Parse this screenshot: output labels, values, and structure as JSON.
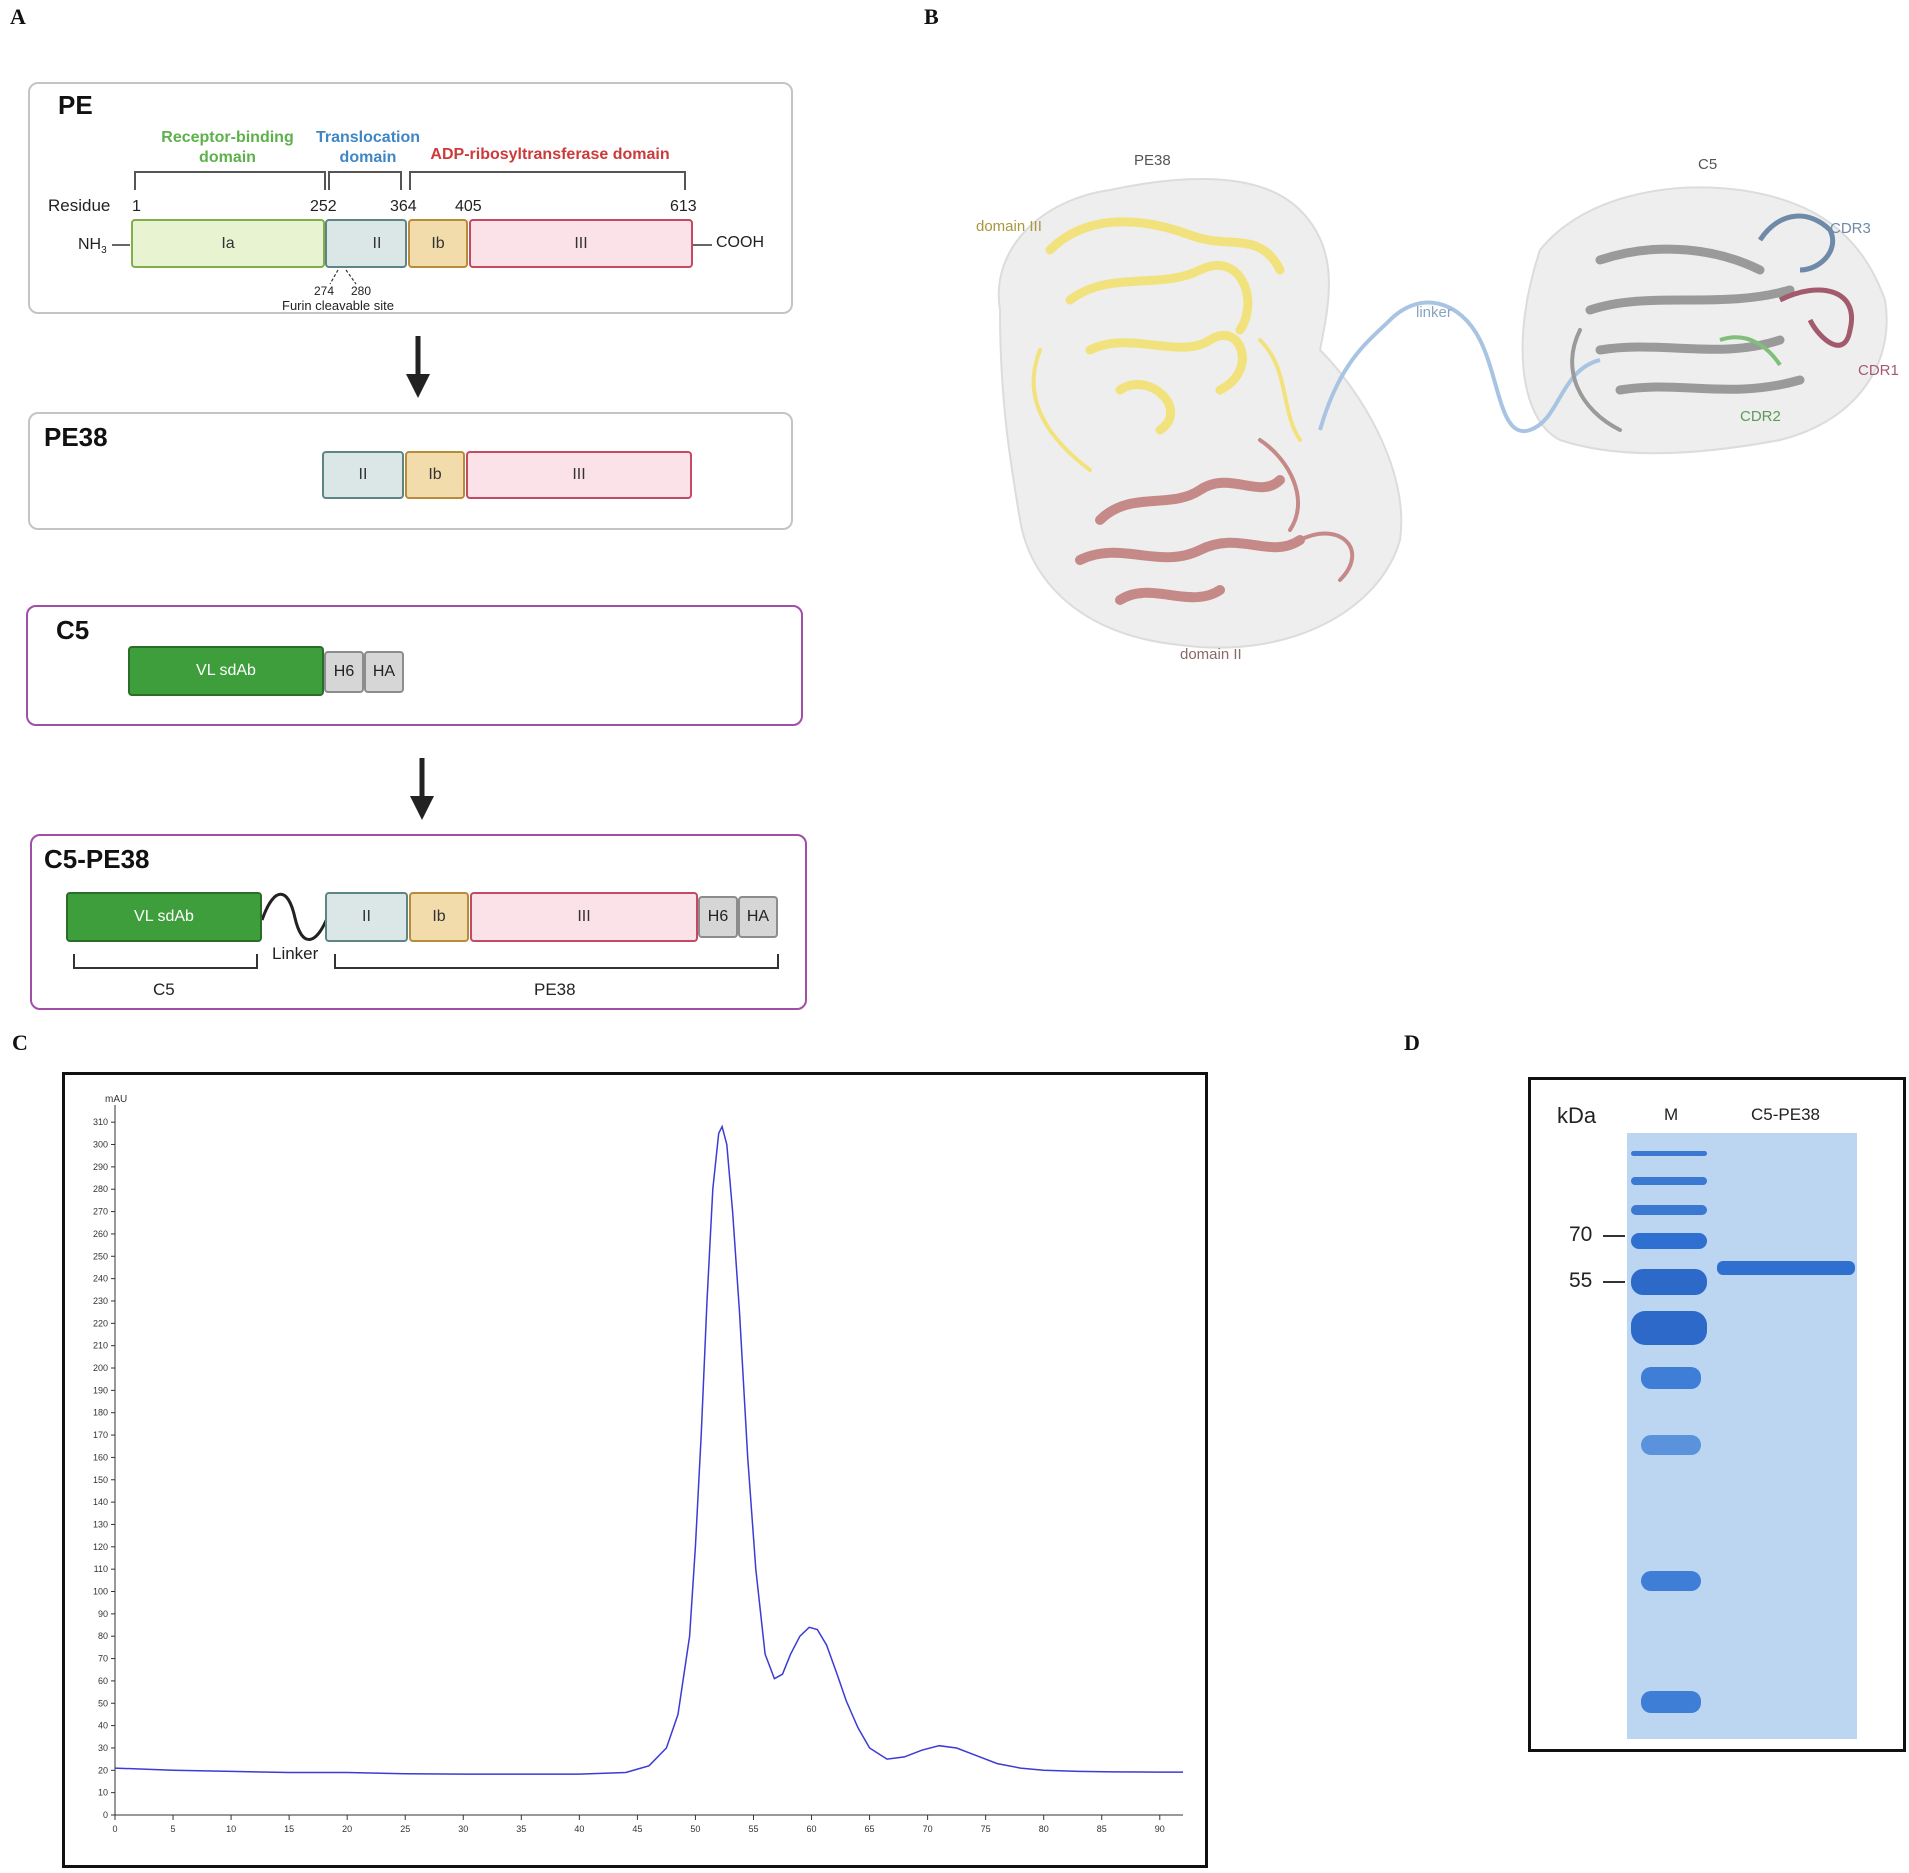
{
  "panels": {
    "a": "A",
    "b": "B",
    "c": "C",
    "d": "D"
  },
  "panel_a": {
    "pe": {
      "title": "PE",
      "domains": {
        "receptor_binding": [
          "Receptor-binding",
          "domain"
        ],
        "translocation": [
          "Translocation",
          "domain"
        ],
        "adp": "ADP-ribosyltransferase domain"
      },
      "residue_label": "Residue",
      "residues": [
        "1",
        "252",
        "364",
        "405",
        "613"
      ],
      "nh3": "NH",
      "nh3_sub": "3",
      "cooh": "COOH",
      "segments": [
        "Ia",
        "II",
        "Ib",
        "III"
      ],
      "furin_numbers": [
        "274",
        "280"
      ],
      "furin_label": "Furin cleavable site"
    },
    "pe38": {
      "title": "PE38",
      "segments": [
        "II",
        "Ib",
        "III"
      ]
    },
    "c5": {
      "title": "C5",
      "segments": [
        "VL sdAb",
        "H6",
        "HA"
      ]
    },
    "c5pe38": {
      "title": "C5-PE38",
      "segments": [
        "VL sdAb",
        "II",
        "Ib",
        "III",
        "H6",
        "HA"
      ],
      "linker": "Linker",
      "bracket_c5": "C5",
      "bracket_pe38": "PE38"
    },
    "colors": {
      "receptor": "#5db14b",
      "translocation": "#3f86c6",
      "adp": "#cc3a3a"
    }
  },
  "panel_b": {
    "labels": {
      "pe38": "PE38",
      "c5": "C5",
      "domain_iii": "domain III",
      "domain_ii": "domain II",
      "linker": "linker",
      "cdr1": "CDR1",
      "cdr2": "CDR2",
      "cdr3": "CDR3"
    },
    "colors": {
      "domain_iii": "#f2e27e",
      "domain_ii": "#c58a88",
      "linker": "#a9c4e2",
      "c5": "#9a9a9a",
      "cdr1": "#a35a6c",
      "cdr2": "#7fbf7a",
      "cdr3": "#6f8aa8"
    }
  },
  "chart_data": {
    "type": "line",
    "ylabel": "mAU",
    "xlim": [
      0,
      92
    ],
    "ylim": [
      0,
      315
    ],
    "xticks": [
      0,
      5,
      10,
      15,
      20,
      25,
      30,
      35,
      40,
      45,
      50,
      55,
      60,
      65,
      70,
      75,
      80,
      85,
      90
    ],
    "yticks": [
      0,
      10,
      20,
      30,
      40,
      50,
      60,
      70,
      80,
      90,
      100,
      110,
      120,
      130,
      140,
      150,
      160,
      170,
      180,
      190,
      200,
      210,
      220,
      230,
      240,
      250,
      260,
      270,
      280,
      290,
      300,
      310
    ],
    "series": [
      {
        "color": "#3b3bd6",
        "x": [
          0,
          5,
          10,
          15,
          20,
          25,
          30,
          35,
          40,
          44,
          46,
          47.5,
          48.5,
          49.5,
          50,
          50.5,
          51,
          51.5,
          52,
          52.3,
          52.7,
          53.2,
          53.8,
          54.5,
          55.2,
          56,
          56.8,
          57.5,
          58.2,
          59,
          59.8,
          60.5,
          61.3,
          62.2,
          63,
          64,
          65,
          66.5,
          68,
          69.5,
          71,
          72.5,
          74,
          76,
          78,
          80,
          83,
          86,
          90,
          92
        ],
        "y": [
          21,
          20,
          19.5,
          19,
          19,
          18.5,
          18.3,
          18.3,
          18.3,
          19,
          22,
          30,
          45,
          80,
          120,
          170,
          230,
          280,
          305,
          308,
          300,
          270,
          225,
          160,
          110,
          72,
          61,
          63,
          72,
          80,
          84,
          83,
          76,
          63,
          51,
          39,
          30,
          25,
          26,
          29,
          31,
          30,
          27,
          23,
          21,
          20,
          19.5,
          19.3,
          19.2,
          19.2
        ]
      }
    ]
  },
  "gel": {
    "kda_label": "kDa",
    "lane_m": "M",
    "lane_sample": "C5-PE38",
    "markers": [
      "70",
      "55"
    ],
    "colors": {
      "gel": "#bcd6f2",
      "band": "#2f6fd0"
    }
  }
}
